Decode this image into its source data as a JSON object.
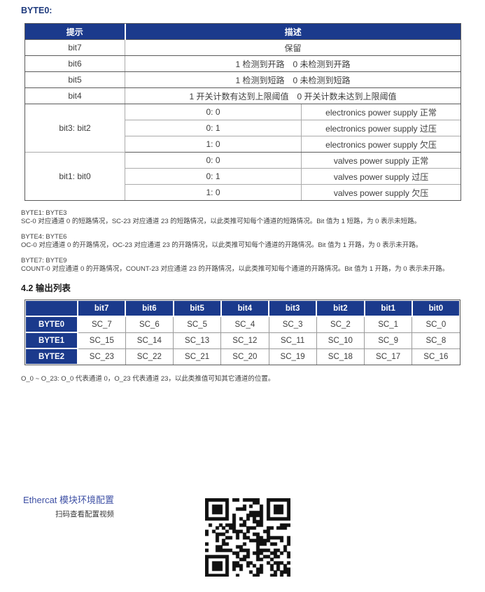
{
  "page": {
    "byte0_label": "BYTE0:",
    "section_heading": "4.2 输出列表",
    "footnote": "O_0 ~ O_23: O_0 代表通道 0，O_23 代表通道 23，以此类推值可知其它通道的位置。",
    "colors": {
      "navy": "#1b3a8c",
      "link_blue": "#3f51a5"
    }
  },
  "table1": {
    "header": {
      "hint": "提示",
      "desc": "描述"
    },
    "rows": [
      {
        "bit": "bit7",
        "desc": "保留"
      },
      {
        "bit": "bit6",
        "desc": "1 检测到开路　0 未检测到开路"
      },
      {
        "bit": "bit5",
        "desc": "1 检测到短路　0 未检测到短路"
      },
      {
        "bit": "bit4",
        "desc": "1 开关计数有达到上限阈值　0 开关计数未达到上限阈值"
      }
    ],
    "groups": [
      {
        "bit": "bit3: bit2",
        "subs": [
          {
            "val": "0: 0",
            "desc": "electronics power supply 正常"
          },
          {
            "val": "0: 1",
            "desc": "electronics power supply 过压"
          },
          {
            "val": "1: 0",
            "desc": "electronics power supply 欠压"
          }
        ]
      },
      {
        "bit": "bit1: bit0",
        "subs": [
          {
            "val": "0: 0",
            "desc": "valves power supply 正常"
          },
          {
            "val": "0: 1",
            "desc": "valves power supply 过压"
          },
          {
            "val": "1: 0",
            "desc": "valves power supply 欠压"
          }
        ]
      }
    ]
  },
  "notes": [
    {
      "label": "BYTE1: BYTE3",
      "text": "SC-0 对应通道 0 的短路情况，SC-23 对应通道 23 的短路情况，以此类推可知每个通道的短路情况。Bit 值为 1 短路，为 0 表示未短路。"
    },
    {
      "label": "BYTE4: BYTE6",
      "text": "OC-0 对应通道 0 的开路情况，OC-23 对应通道 23 的开路情况，以此类推可知每个通道的开路情况。Bit 值为 1 开路，为 0 表示未开路。"
    },
    {
      "label": "BYTE7: BYTE9",
      "text": "COUNT-0 对应通道 0 的开路情况，COUNT-23 对应通道 23 的开路情况，以此类推可知每个通道的开路情况。Bit 值为 1 开路，为 0 表示未开路。"
    }
  ],
  "table2": {
    "corner": "",
    "col_headers": [
      "bit7",
      "bit6",
      "bit5",
      "bit4",
      "bit3",
      "bit2",
      "bit1",
      "bit0"
    ],
    "rows": [
      {
        "label": "BYTE0",
        "cells": [
          "SC_7",
          "SC_6",
          "SC_5",
          "SC_4",
          "SC_3",
          "SC_2",
          "SC_1",
          "SC_0"
        ]
      },
      {
        "label": "BYTE1",
        "cells": [
          "SC_15",
          "SC_14",
          "SC_13",
          "SC_12",
          "SC_11",
          "SC_10",
          "SC_9",
          "SC_8"
        ]
      },
      {
        "label": "BYTE2",
        "cells": [
          "SC_23",
          "SC_22",
          "SC_21",
          "SC_20",
          "SC_19",
          "SC_18",
          "SC_17",
          "SC_16"
        ]
      }
    ]
  },
  "bottom": {
    "link_label": "Ethercat 模块环境配置",
    "scan_hint": "扫码查看配置视频"
  }
}
